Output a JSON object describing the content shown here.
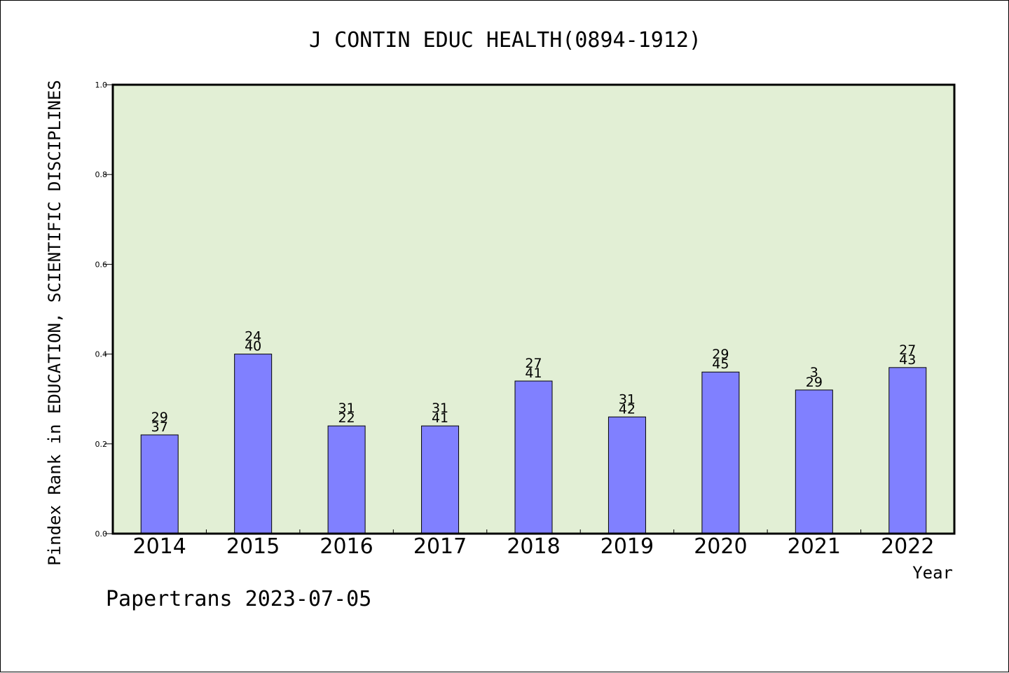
{
  "chart_data": {
    "type": "bar",
    "title": "J CONTIN EDUC HEALTH(0894-1912)",
    "xlabel": "Year",
    "ylabel": "Pindex Rank in EDUCATION, SCIENTIFIC DISCIPLINES",
    "ylim": [
      0,
      1.0
    ],
    "yticks": [
      "0.0",
      "0.2",
      "0.4",
      "0.6",
      "0.8",
      "1.0"
    ],
    "grid": false,
    "categories": [
      "2014",
      "2015",
      "2016",
      "2017",
      "2018",
      "2019",
      "2020",
      "2021",
      "2022"
    ],
    "values": [
      0.22,
      0.4,
      0.24,
      0.24,
      0.34,
      0.26,
      0.36,
      0.32,
      0.37
    ],
    "labels_top": [
      "29",
      "24",
      "31",
      "31",
      "27",
      "31",
      "29",
      "3",
      "27"
    ],
    "labels_bottom": [
      "37",
      "40",
      "22",
      "41",
      "41",
      "42",
      "45",
      "29",
      "43"
    ],
    "footer": "Papertrans 2023-07-05",
    "colors": {
      "bar_fill": "#8080ff",
      "plot_background": "#e2efd5",
      "axis": "#000000"
    }
  }
}
